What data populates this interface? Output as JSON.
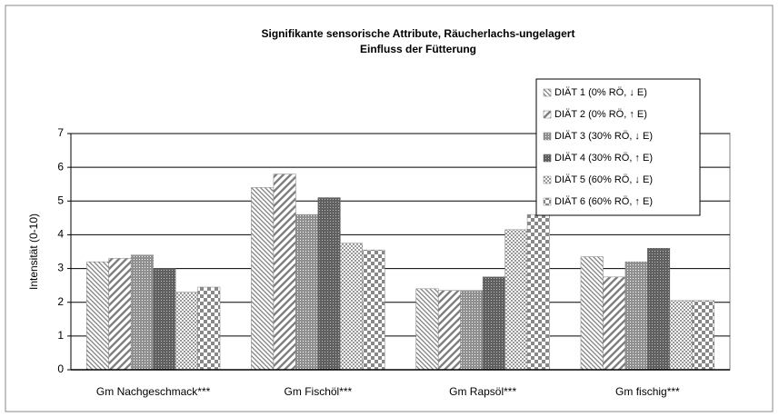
{
  "chart_data": {
    "type": "bar",
    "title": "Signifikante sensorische Attribute,  Räucherlachs-ungelagert",
    "subtitle": "Einfluss der Fütterung",
    "y_label": "Intensität (0-10)",
    "categories": [
      "Gm Nachgeschmack***",
      "Gm Fischöl***",
      "Gm Rapsöl***",
      "Gm fischig***"
    ],
    "series": [
      {
        "name": "DIÄT 1 (0% RÖ, ↓ E)",
        "color": "#808080",
        "pattern": "diagonal-down",
        "values": [
          3.2,
          5.4,
          2.4,
          3.35
        ]
      },
      {
        "name": "DIÄT 2 (0% RÖ, ↑ E)",
        "color": "#808080",
        "pattern": "diagonal-up-wide",
        "values": [
          3.3,
          5.8,
          2.35,
          2.75
        ]
      },
      {
        "name": "DIÄT 3 (30% RÖ, ↓ E)",
        "color": "#808080",
        "pattern": "dots",
        "values": [
          3.4,
          4.6,
          2.35,
          3.2
        ]
      },
      {
        "name": "DIÄT 4 (30% RÖ, ↑ E)",
        "color": "#606060",
        "pattern": "dots-dark",
        "values": [
          3.0,
          5.1,
          2.75,
          3.6
        ]
      },
      {
        "name": "DIÄT 5 (60% RÖ, ↓ E)",
        "color": "#808080",
        "pattern": "checker-small",
        "values": [
          2.3,
          3.75,
          4.15,
          2.05
        ]
      },
      {
        "name": "DIÄT 6 (60% RÖ, ↑ E)",
        "color": "#808080",
        "pattern": "checker",
        "values": [
          2.45,
          3.55,
          4.6,
          2.05
        ]
      }
    ],
    "ylim": [
      0,
      7
    ],
    "yticks": [
      0,
      1,
      2,
      3,
      4,
      5,
      6,
      7
    ],
    "grid": true,
    "legend": "top-right"
  }
}
